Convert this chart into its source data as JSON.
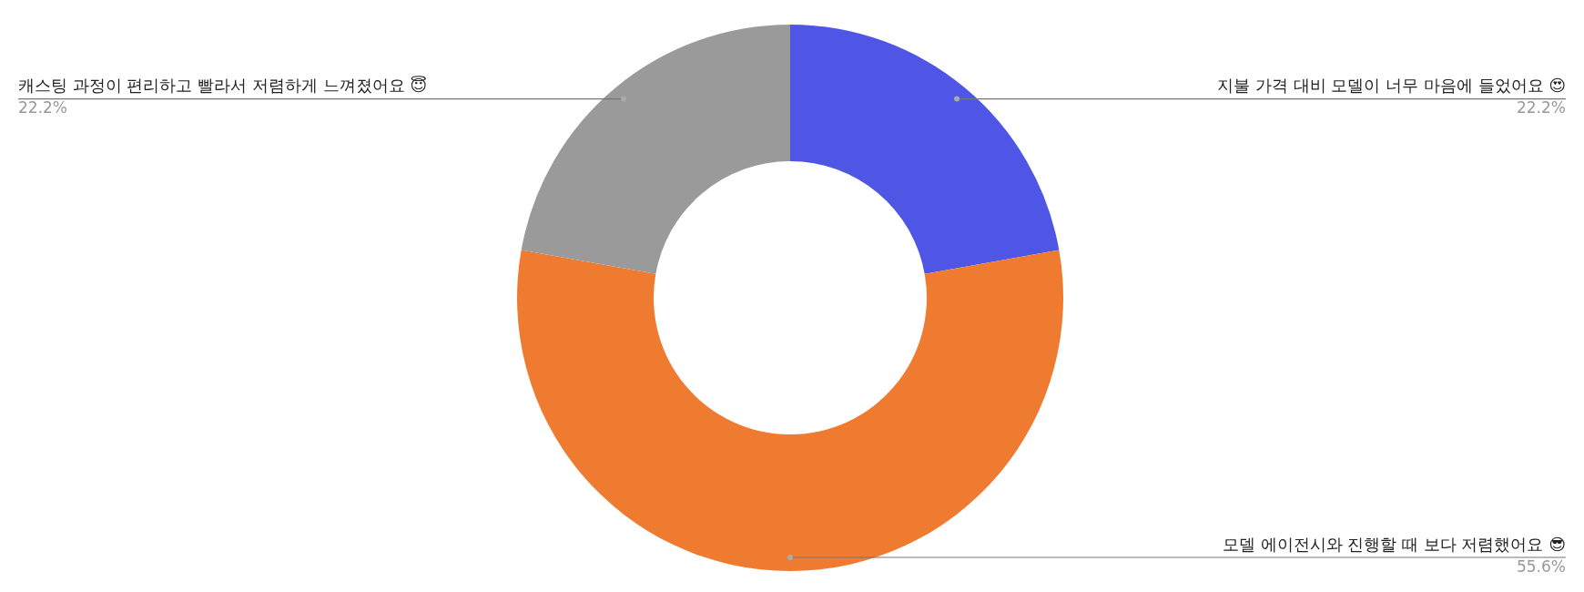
{
  "chart_data": {
    "type": "donut",
    "categories": [
      "지불 가격 대비 모델이 너무 마음에 들었어요 😍",
      "모델 에이전시와 진행할 때 보다 저렴했어요 😎",
      "캐스팅 과정이 편리하고 빨라서 저렴하게 느껴졌어요 😇"
    ],
    "values": [
      22.2,
      55.6,
      22.2
    ],
    "colors": [
      "#4f56e6",
      "#ee7b30",
      "#9a9a9a"
    ],
    "value_labels": [
      "22.2%",
      "55.6%",
      "22.2%"
    ],
    "legend": false
  }
}
